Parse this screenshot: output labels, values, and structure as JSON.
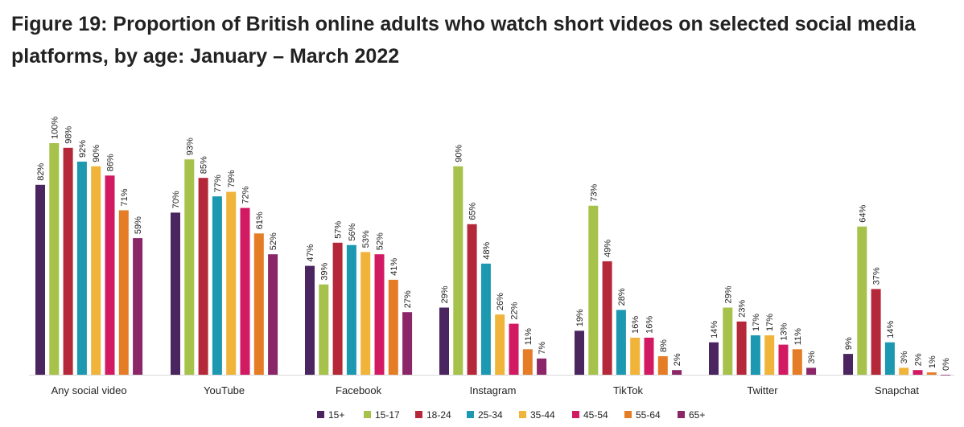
{
  "title": "Figure 19: Proportion of British online adults who watch short videos on selected social media platforms, by age: January – March 2022",
  "chart_data": {
    "type": "bar",
    "title": "Figure 19: Proportion of British online adults who watch short videos on selected social media platforms, by age: January – March 2022",
    "categories": [
      "Any social video",
      "YouTube",
      "Facebook",
      "Instagram",
      "TikTok",
      "Twitter",
      "Snapchat"
    ],
    "series": [
      {
        "name": "15+",
        "color": "#4b2560",
        "values": [
          82,
          70,
          47,
          29,
          19,
          14,
          9
        ]
      },
      {
        "name": "15-17",
        "color": "#a6c24b",
        "values": [
          100,
          93,
          39,
          90,
          73,
          29,
          64
        ]
      },
      {
        "name": "18-24",
        "color": "#b52839",
        "values": [
          98,
          85,
          57,
          65,
          49,
          23,
          37
        ]
      },
      {
        "name": "25-34",
        "color": "#1c98b1",
        "values": [
          92,
          77,
          56,
          48,
          28,
          17,
          14
        ]
      },
      {
        "name": "35-44",
        "color": "#f0b43b",
        "values": [
          90,
          79,
          53,
          26,
          16,
          17,
          3
        ]
      },
      {
        "name": "45-54",
        "color": "#d21a63",
        "values": [
          86,
          72,
          52,
          22,
          16,
          13,
          2
        ]
      },
      {
        "name": "55-64",
        "color": "#e57c26",
        "values": [
          71,
          61,
          41,
          11,
          8,
          11,
          1
        ]
      },
      {
        "name": "65+",
        "color": "#8b2769",
        "values": [
          59,
          52,
          27,
          7,
          2,
          3,
          0
        ]
      }
    ],
    "value_suffix": "%",
    "ylim": [
      0,
      100
    ],
    "grid": false,
    "legend": "bottom-center"
  }
}
